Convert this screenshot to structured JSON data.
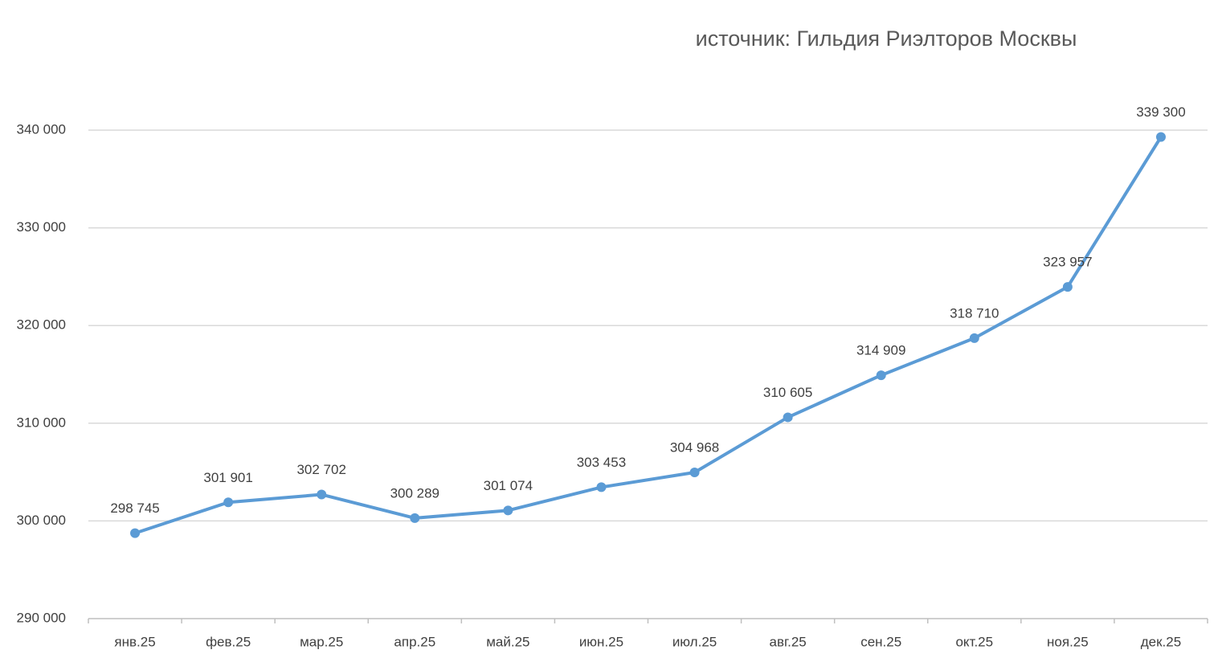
{
  "chart_data": {
    "type": "line",
    "title": "источник: Гильдия Риэлторов Москвы",
    "categories": [
      "янв.25",
      "фев.25",
      "мар.25",
      "апр.25",
      "май.25",
      "июн.25",
      "июл.25",
      "авг.25",
      "сен.25",
      "окт.25",
      "ноя.25",
      "дек.25"
    ],
    "series": [
      {
        "name": null,
        "color": "#5b9bd5",
        "values": [
          298745,
          301901,
          302702,
          300289,
          301074,
          303453,
          304968,
          310605,
          314909,
          318710,
          323957,
          339300
        ],
        "value_labels": [
          "298 745",
          "301 901",
          "302 702",
          "300 289",
          "301 074",
          "303 453",
          "304 968",
          "310 605",
          "314 909",
          "318 710",
          "323 957",
          "339 300"
        ]
      }
    ],
    "ylim": [
      290000,
      340000
    ],
    "yticks": [
      {
        "value": 290000,
        "label": "290 000"
      },
      {
        "value": 300000,
        "label": "300 000"
      },
      {
        "value": 310000,
        "label": "310 000"
      },
      {
        "value": 320000,
        "label": "320 000"
      },
      {
        "value": 330000,
        "label": "330 000"
      },
      {
        "value": 340000,
        "label": "340 000"
      }
    ],
    "grid": true
  }
}
